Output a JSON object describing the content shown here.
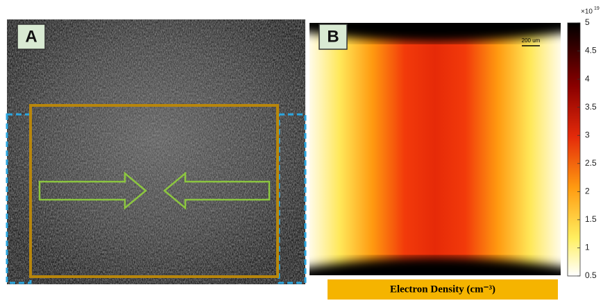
{
  "panels": [
    {
      "label": "A"
    },
    {
      "label": "B",
      "scale_bar": "200 um"
    }
  ],
  "colorbar": {
    "multiplier": "×10",
    "exponent": "19",
    "lim": [
      0.5,
      5
    ],
    "ticks": [
      0.5,
      1,
      1.5,
      2,
      2.5,
      3,
      3.5,
      4,
      4.5,
      5
    ]
  },
  "caption": "Electron Density (cm⁻³)"
}
